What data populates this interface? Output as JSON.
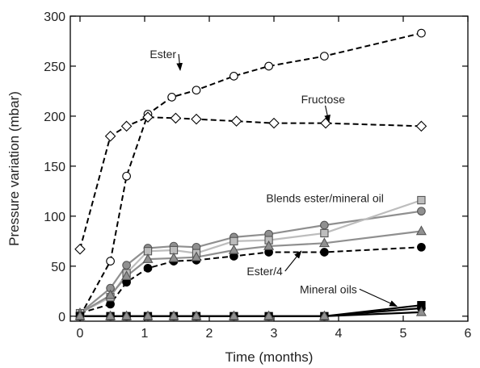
{
  "chart_data": {
    "type": "line",
    "title": "",
    "xlabel": "Time (months)",
    "ylabel": "Pressure variation (mbar)",
    "xlim": [
      -0.15,
      6
    ],
    "ylim": [
      -5,
      300
    ],
    "xticks": [
      "0",
      "1",
      "2",
      "3",
      "4",
      "5",
      "6"
    ],
    "yticks": [
      "0",
      "50",
      "100",
      "150",
      "200",
      "250",
      "300"
    ],
    "grid": false,
    "legend": "none",
    "series": [
      {
        "style": {
          "line": "#000000",
          "dash": true,
          "marker": "circle",
          "fill": "#ffffff",
          "stroke": "#000000"
        },
        "points": [
          [
            0,
            0
          ],
          [
            0.47,
            55
          ],
          [
            0.72,
            140
          ],
          [
            1.05,
            202
          ],
          [
            1.42,
            219
          ],
          [
            1.8,
            226
          ],
          [
            2.38,
            240
          ],
          [
            2.92,
            250
          ],
          [
            3.78,
            260
          ],
          [
            5.28,
            283
          ]
        ]
      },
      {
        "style": {
          "line": "#000000",
          "dash": true,
          "marker": "diamond",
          "fill": "#ffffff",
          "stroke": "#000000"
        },
        "points": [
          [
            0,
            67
          ],
          [
            0.47,
            180
          ],
          [
            0.72,
            190
          ],
          [
            1.05,
            199
          ],
          [
            1.48,
            198
          ],
          [
            1.8,
            197
          ],
          [
            2.42,
            195
          ],
          [
            3.0,
            193
          ],
          [
            3.8,
            193
          ],
          [
            5.28,
            190
          ]
        ]
      },
      {
        "style": {
          "line": "#000000",
          "dash": true,
          "marker": "circle",
          "fill": "#000000",
          "stroke": "#000000"
        },
        "points": [
          [
            0,
            3
          ],
          [
            0.47,
            12
          ],
          [
            0.72,
            34
          ],
          [
            1.05,
            48
          ],
          [
            1.45,
            55
          ],
          [
            1.8,
            56
          ],
          [
            2.38,
            60
          ],
          [
            2.92,
            64
          ],
          [
            3.78,
            64
          ],
          [
            5.28,
            69
          ]
        ]
      },
      {
        "style": {
          "line": "#8f8f8f",
          "dash": false,
          "marker": "circle",
          "fill": "#909090",
          "stroke": "#555555"
        },
        "points": [
          [
            0,
            3
          ],
          [
            0.47,
            28
          ],
          [
            0.72,
            51
          ],
          [
            1.05,
            68
          ],
          [
            1.45,
            70
          ],
          [
            1.8,
            69
          ],
          [
            2.38,
            79
          ],
          [
            2.92,
            82
          ],
          [
            3.78,
            91
          ],
          [
            5.28,
            105
          ]
        ]
      },
      {
        "style": {
          "line": "#bdbdbd",
          "dash": false,
          "marker": "square",
          "fill": "#bdbdbd",
          "stroke": "#555555"
        },
        "points": [
          [
            0,
            3
          ],
          [
            0.47,
            19
          ],
          [
            0.72,
            43
          ],
          [
            1.05,
            65
          ],
          [
            1.45,
            66
          ],
          [
            1.8,
            63
          ],
          [
            2.38,
            75
          ],
          [
            2.92,
            76
          ],
          [
            3.78,
            83
          ],
          [
            5.28,
            116
          ]
        ]
      },
      {
        "style": {
          "line": "#8f8f8f",
          "dash": false,
          "marker": "triangle",
          "fill": "#909090",
          "stroke": "#555555"
        },
        "points": [
          [
            0,
            3
          ],
          [
            0.47,
            21
          ],
          [
            0.72,
            40
          ],
          [
            1.05,
            57
          ],
          [
            1.45,
            58
          ],
          [
            1.8,
            59
          ],
          [
            2.38,
            66
          ],
          [
            2.92,
            70
          ],
          [
            3.78,
            73
          ],
          [
            5.28,
            85
          ]
        ]
      },
      {
        "style": {
          "line": "#000000",
          "dash": false,
          "marker": "square",
          "fill": "#000000",
          "stroke": "#000000"
        },
        "points": [
          [
            0,
            0
          ],
          [
            0.47,
            0
          ],
          [
            0.72,
            0
          ],
          [
            1.05,
            0
          ],
          [
            1.45,
            0
          ],
          [
            1.8,
            0
          ],
          [
            2.38,
            0
          ],
          [
            2.92,
            0
          ],
          [
            3.78,
            0
          ],
          [
            5.28,
            11
          ]
        ]
      },
      {
        "style": {
          "line": "#000000",
          "dash": false,
          "marker": "circle",
          "fill": "#000000",
          "stroke": "#000000"
        },
        "points": [
          [
            0,
            0
          ],
          [
            0.47,
            0
          ],
          [
            0.72,
            0
          ],
          [
            1.05,
            0
          ],
          [
            1.45,
            0
          ],
          [
            1.8,
            0
          ],
          [
            2.38,
            0
          ],
          [
            2.92,
            0
          ],
          [
            3.78,
            0
          ],
          [
            5.28,
            8
          ]
        ]
      },
      {
        "style": {
          "line": "#000000",
          "dash": false,
          "marker": "triangle",
          "fill": "#909090",
          "stroke": "#555555"
        },
        "points": [
          [
            0,
            0
          ],
          [
            0.47,
            0
          ],
          [
            0.72,
            0
          ],
          [
            1.05,
            0
          ],
          [
            1.45,
            0
          ],
          [
            1.8,
            0
          ],
          [
            2.38,
            0
          ],
          [
            2.92,
            0
          ],
          [
            3.78,
            0
          ],
          [
            5.28,
            4
          ]
        ]
      }
    ],
    "annotations": [
      {
        "text": "Ester",
        "at": [
          1.08,
          258
        ],
        "arrow_to": [
          1.55,
          246
        ]
      },
      {
        "text": "Fructose",
        "at": [
          3.42,
          213
        ],
        "arrow_to": [
          3.85,
          194
        ]
      },
      {
        "text": "Blends ester/mineral oil",
        "at": [
          2.88,
          114
        ],
        "arrow_to": null
      },
      {
        "text": "Ester/4",
        "at": [
          2.58,
          41
        ],
        "arrow_to": [
          3.42,
          65
        ]
      },
      {
        "text": "Mineral oils",
        "at": [
          3.4,
          23
        ],
        "arrow_to": [
          4.9,
          10
        ]
      }
    ]
  }
}
